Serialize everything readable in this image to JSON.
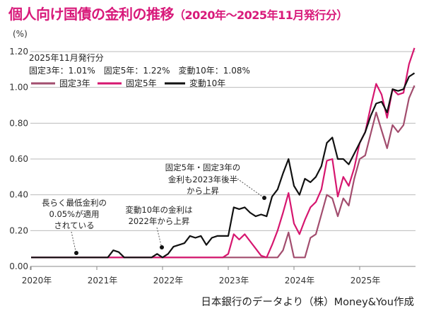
{
  "title": "個人向け国債の金利の推移",
  "title_sub": "（2020年～2025年11月発行分）",
  "unit": "(%)",
  "summary": {
    "heading": "2025年11月発行分",
    "values": "固定3年：1.01%　固定5年：1.22%　変動10年：1.08%"
  },
  "annotations": [
    {
      "lines": [
        "長らく最低金利の",
        "0.05%が適用",
        "されている"
      ]
    },
    {
      "lines": [
        "変動10年の金利は",
        "2022年から上昇"
      ]
    },
    {
      "lines": [
        "固定5年・固定3年の",
        "金利も2023年後半",
        "から上昇"
      ]
    }
  ],
  "source": "日本銀行のデータより（株）Money&You作成",
  "chart_data": {
    "type": "line",
    "title": "個人向け国債の金利の推移（2020年～2025年11月発行分）",
    "ylabel": "(%)",
    "ylim": [
      0,
      1.2
    ],
    "yticks": [
      "0.00",
      "0.20",
      "0.40",
      "0.60",
      "0.80",
      "1.00",
      "1.20"
    ],
    "xticks": [
      "2020年",
      "2021年",
      "2022年",
      "2023年",
      "2024年",
      "2025年"
    ],
    "grid": true,
    "legend_position": "top-left",
    "x": [
      "2020-01",
      "2020-02",
      "2020-03",
      "2020-04",
      "2020-05",
      "2020-06",
      "2020-07",
      "2020-08",
      "2020-09",
      "2020-10",
      "2020-11",
      "2020-12",
      "2021-01",
      "2021-02",
      "2021-03",
      "2021-04",
      "2021-05",
      "2021-06",
      "2021-07",
      "2021-08",
      "2021-09",
      "2021-10",
      "2021-11",
      "2021-12",
      "2022-01",
      "2022-02",
      "2022-03",
      "2022-04",
      "2022-05",
      "2022-06",
      "2022-07",
      "2022-08",
      "2022-09",
      "2022-10",
      "2022-11",
      "2022-12",
      "2023-01",
      "2023-02",
      "2023-03",
      "2023-04",
      "2023-05",
      "2023-06",
      "2023-07",
      "2023-08",
      "2023-09",
      "2023-10",
      "2023-11",
      "2023-12",
      "2024-01",
      "2024-02",
      "2024-03",
      "2024-04",
      "2024-05",
      "2024-06",
      "2024-07",
      "2024-08",
      "2024-09",
      "2024-10",
      "2024-11",
      "2024-12",
      "2025-01",
      "2025-02",
      "2025-03",
      "2025-04",
      "2025-05",
      "2025-06",
      "2025-07",
      "2025-08",
      "2025-09",
      "2025-10",
      "2025-11"
    ],
    "series": [
      {
        "name": "固定3年",
        "color": "#a24d6e",
        "values": [
          0.05,
          0.05,
          0.05,
          0.05,
          0.05,
          0.05,
          0.05,
          0.05,
          0.05,
          0.05,
          0.05,
          0.05,
          0.05,
          0.05,
          0.05,
          0.05,
          0.05,
          0.05,
          0.05,
          0.05,
          0.05,
          0.05,
          0.05,
          0.05,
          0.05,
          0.05,
          0.05,
          0.05,
          0.05,
          0.05,
          0.05,
          0.05,
          0.05,
          0.05,
          0.05,
          0.05,
          0.05,
          0.05,
          0.05,
          0.05,
          0.05,
          0.05,
          0.05,
          0.05,
          0.05,
          0.05,
          0.09,
          0.19,
          0.05,
          0.05,
          0.05,
          0.16,
          0.18,
          0.29,
          0.4,
          0.38,
          0.28,
          0.38,
          0.34,
          0.49,
          0.6,
          0.62,
          0.74,
          0.86,
          0.76,
          0.66,
          0.79,
          0.75,
          0.79,
          0.94,
          1.01
        ]
      },
      {
        "name": "固定5年",
        "color": "#d6166f",
        "values": [
          0.05,
          0.05,
          0.05,
          0.05,
          0.05,
          0.05,
          0.05,
          0.05,
          0.05,
          0.05,
          0.05,
          0.05,
          0.05,
          0.05,
          0.05,
          0.05,
          0.05,
          0.05,
          0.05,
          0.05,
          0.05,
          0.05,
          0.05,
          0.05,
          0.05,
          0.05,
          0.05,
          0.05,
          0.05,
          0.05,
          0.05,
          0.05,
          0.05,
          0.05,
          0.05,
          0.05,
          0.07,
          0.18,
          0.15,
          0.18,
          0.14,
          0.1,
          0.06,
          0.05,
          0.12,
          0.2,
          0.3,
          0.41,
          0.24,
          0.18,
          0.26,
          0.33,
          0.36,
          0.43,
          0.59,
          0.6,
          0.39,
          0.5,
          0.45,
          0.55,
          0.69,
          0.75,
          0.89,
          1.02,
          0.96,
          0.83,
          0.99,
          0.96,
          0.97,
          1.13,
          1.22
        ]
      },
      {
        "name": "変動10年",
        "color": "#111111",
        "values": [
          0.05,
          0.05,
          0.05,
          0.05,
          0.05,
          0.05,
          0.05,
          0.05,
          0.05,
          0.05,
          0.05,
          0.05,
          0.05,
          0.05,
          0.05,
          0.09,
          0.08,
          0.05,
          0.05,
          0.05,
          0.05,
          0.05,
          0.05,
          0.07,
          0.05,
          0.07,
          0.11,
          0.12,
          0.13,
          0.17,
          0.16,
          0.17,
          0.12,
          0.16,
          0.17,
          0.17,
          0.17,
          0.33,
          0.32,
          0.33,
          0.3,
          0.28,
          0.29,
          0.28,
          0.39,
          0.43,
          0.52,
          0.6,
          0.45,
          0.4,
          0.49,
          0.47,
          0.5,
          0.56,
          0.69,
          0.72,
          0.6,
          0.6,
          0.57,
          0.63,
          0.69,
          0.75,
          0.84,
          0.91,
          0.92,
          0.86,
          0.99,
          0.98,
          0.99,
          1.06,
          1.08
        ]
      }
    ]
  }
}
